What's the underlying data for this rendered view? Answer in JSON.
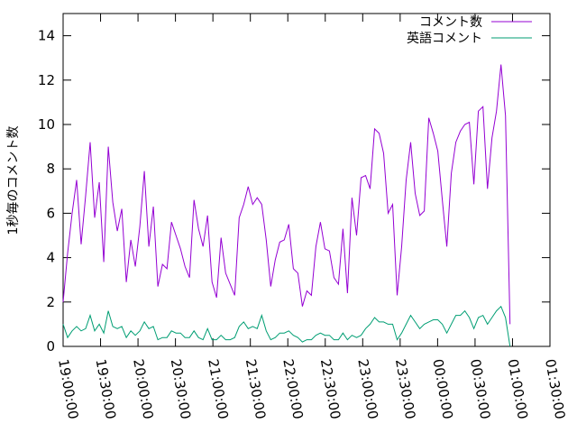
{
  "chart_data": {
    "type": "line",
    "title": "",
    "xlabel": "",
    "ylabel": "1秒毎のコメント数",
    "ylim": [
      0,
      15
    ],
    "grid": false,
    "legend_position": "top-right",
    "x_ticks": [
      "19:00:00",
      "19:30:00",
      "20:00:00",
      "20:30:00",
      "21:00:00",
      "21:30:00",
      "22:00:00",
      "22:30:00",
      "23:00:00",
      "23:30:00",
      "00:00:00",
      "00:30:00",
      "01:00:00",
      "01:30:00"
    ],
    "y_ticks": [
      "0",
      "2",
      "4",
      "6",
      "8",
      "10",
      "12",
      "14"
    ],
    "series": [
      {
        "name": "コメント数",
        "color": "#9400d3",
        "values": [
          2.0,
          4.2,
          6.0,
          7.5,
          4.6,
          6.8,
          9.2,
          5.8,
          7.4,
          3.8,
          9.0,
          6.5,
          5.2,
          6.2,
          2.9,
          4.8,
          3.6,
          5.4,
          7.9,
          4.5,
          6.3,
          2.7,
          3.7,
          3.5,
          5.6,
          5.0,
          4.4,
          3.6,
          3.1,
          6.6,
          5.3,
          4.5,
          5.9,
          2.9,
          2.2,
          4.9,
          3.3,
          2.8,
          2.3,
          5.8,
          6.4,
          7.2,
          6.4,
          6.7,
          6.4,
          4.8,
          2.7,
          3.9,
          4.7,
          4.8,
          5.5,
          3.5,
          3.3,
          1.8,
          2.5,
          2.3,
          4.5,
          5.6,
          4.4,
          4.3,
          3.1,
          2.8,
          5.3,
          2.4,
          6.7,
          5.0,
          7.6,
          7.7,
          7.1,
          9.8,
          9.6,
          8.7,
          6.0,
          6.4,
          2.3,
          4.5,
          7.5,
          9.2,
          6.9,
          5.9,
          6.1,
          10.3,
          9.6,
          8.8,
          6.6,
          4.5,
          7.8,
          9.2,
          9.7,
          10.0,
          10.1,
          7.3,
          10.6,
          10.8,
          7.1,
          9.4,
          10.6,
          12.7,
          10.4,
          1.0
        ],
        "x_start": "19:00:00",
        "x_end": "00:58:00"
      },
      {
        "name": "英語コメント",
        "color": "#009e73",
        "values": [
          1.0,
          0.4,
          0.7,
          0.9,
          0.7,
          0.8,
          1.4,
          0.7,
          1.0,
          0.6,
          1.6,
          0.9,
          0.8,
          0.9,
          0.4,
          0.7,
          0.5,
          0.7,
          1.1,
          0.8,
          0.9,
          0.3,
          0.4,
          0.4,
          0.7,
          0.6,
          0.6,
          0.4,
          0.4,
          0.7,
          0.4,
          0.3,
          0.8,
          0.3,
          0.3,
          0.5,
          0.3,
          0.3,
          0.4,
          0.9,
          1.1,
          0.8,
          0.9,
          0.8,
          1.4,
          0.7,
          0.3,
          0.4,
          0.6,
          0.6,
          0.7,
          0.5,
          0.4,
          0.2,
          0.3,
          0.3,
          0.5,
          0.6,
          0.5,
          0.5,
          0.3,
          0.3,
          0.6,
          0.3,
          0.5,
          0.4,
          0.5,
          0.8,
          1.0,
          1.3,
          1.1,
          1.1,
          1.0,
          1.0,
          0.3,
          0.6,
          1.0,
          1.4,
          1.1,
          0.8,
          1.0,
          1.1,
          1.2,
          1.2,
          1.0,
          0.6,
          1.0,
          1.4,
          1.4,
          1.6,
          1.3,
          0.8,
          1.3,
          1.4,
          1.0,
          1.3,
          1.6,
          1.8,
          1.3,
          0.0
        ],
        "x_start": "19:00:00",
        "x_end": "00:58:00"
      }
    ]
  }
}
